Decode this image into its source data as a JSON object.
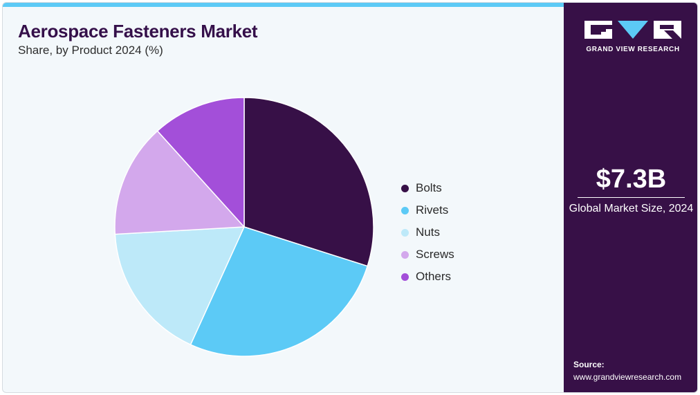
{
  "header": {
    "title": "Aerospace Fasteners Market",
    "subtitle": "Share, by Product 2024 (%)"
  },
  "brand": {
    "logo_text": "GRAND VIEW RESEARCH",
    "accent_color": "#5ccaf6",
    "panel_color": "#371047"
  },
  "summary": {
    "value": "$7.3B",
    "label": "Global Market Size, 2024"
  },
  "source": {
    "title": "Source:",
    "url": "www.grandviewresearch.com"
  },
  "chart_data": {
    "type": "pie",
    "title": "Aerospace Fasteners Market",
    "subtitle": "Share, by Product 2024 (%)",
    "legend_position": "right",
    "start": "12 o'clock, clockwise",
    "slices": [
      {
        "label": "Bolts",
        "value": 29.9,
        "color": "#371047"
      },
      {
        "label": "Rivets",
        "value": 26.9,
        "color": "#5ccaf6"
      },
      {
        "label": "Nuts",
        "value": 17.3,
        "color": "#bde9f9"
      },
      {
        "label": "Screws",
        "value": 14.2,
        "color": "#d3a8ec"
      },
      {
        "label": "Others",
        "value": 11.7,
        "color": "#a34fd9"
      }
    ]
  }
}
